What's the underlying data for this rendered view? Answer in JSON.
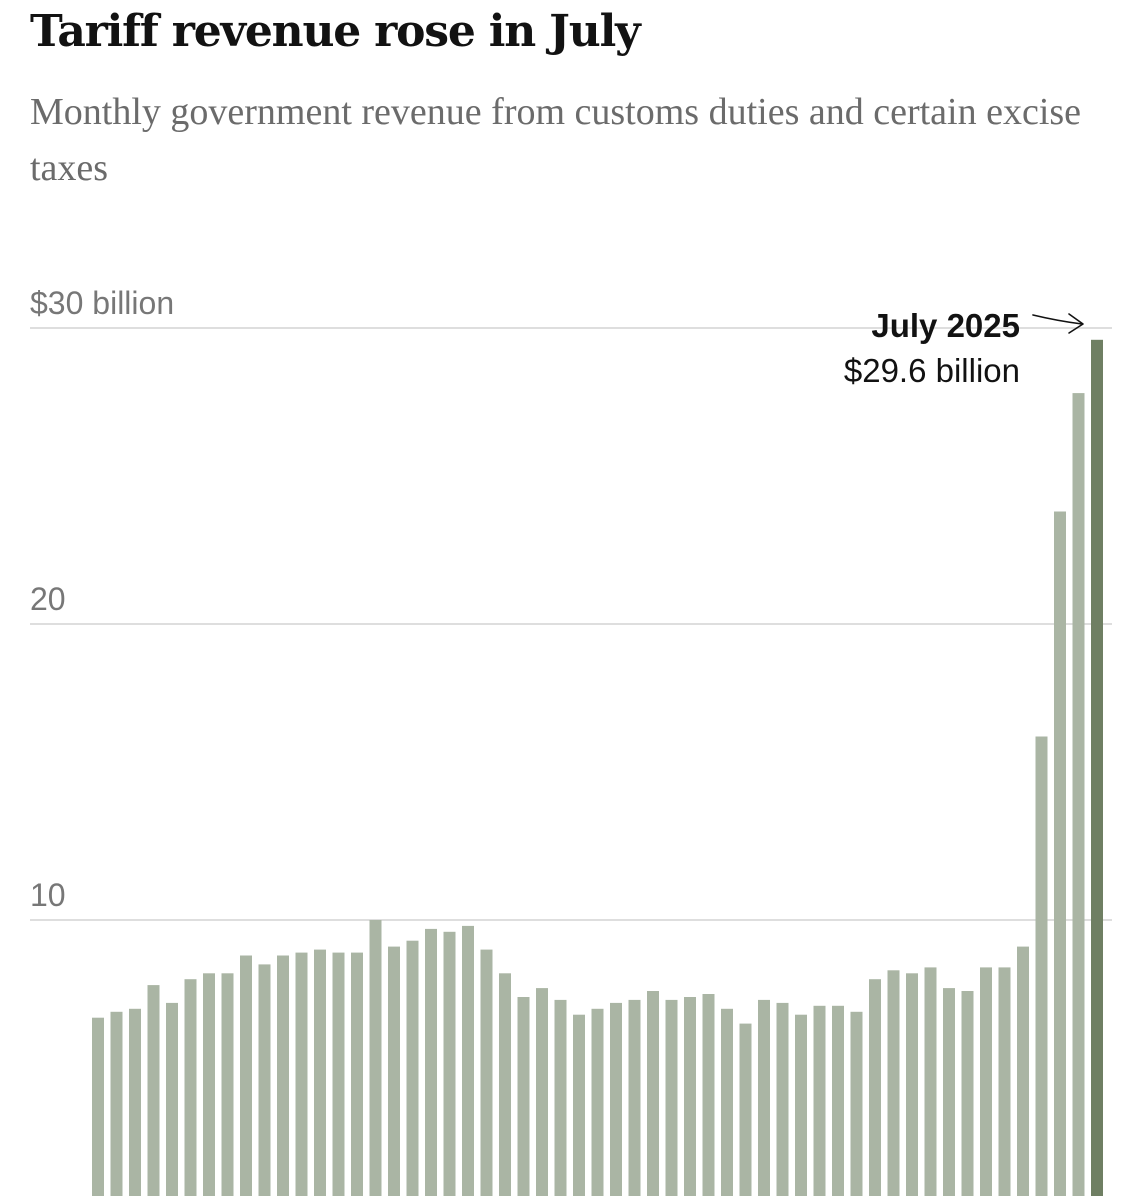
{
  "chart_data": {
    "type": "bar",
    "title": "Tariff revenue rose in July",
    "subtitle": "Monthly government revenue from customs duties and certain excise taxes",
    "xlabel": "",
    "ylabel": "",
    "ylim": [
      0,
      30
    ],
    "y_ticks": [
      {
        "value": 30,
        "label": "$30 billion"
      },
      {
        "value": 20,
        "label": "20"
      },
      {
        "value": 10,
        "label": "10"
      }
    ],
    "grid": true,
    "values": [
      6.7,
      6.9,
      7.0,
      7.8,
      7.2,
      8.0,
      8.2,
      8.2,
      8.8,
      8.5,
      8.8,
      8.9,
      9.0,
      8.9,
      8.9,
      10.0,
      9.1,
      9.3,
      9.7,
      9.6,
      9.8,
      9.0,
      8.2,
      7.4,
      7.7,
      7.3,
      6.8,
      7.0,
      7.2,
      7.3,
      7.6,
      7.3,
      7.4,
      7.5,
      7.0,
      6.5,
      7.3,
      7.2,
      6.8,
      7.1,
      7.1,
      6.9,
      8.0,
      8.3,
      8.2,
      8.4,
      7.7,
      7.6,
      8.4,
      8.4,
      9.1,
      16.2,
      23.8,
      27.8,
      29.6
    ],
    "colors": {
      "bar": "#aab5a4",
      "highlight": "#6f7f63",
      "grid": "#dedede"
    },
    "annotation": {
      "label": "July 2025",
      "value_text": "$29.6 billion",
      "target_index": 54
    }
  }
}
